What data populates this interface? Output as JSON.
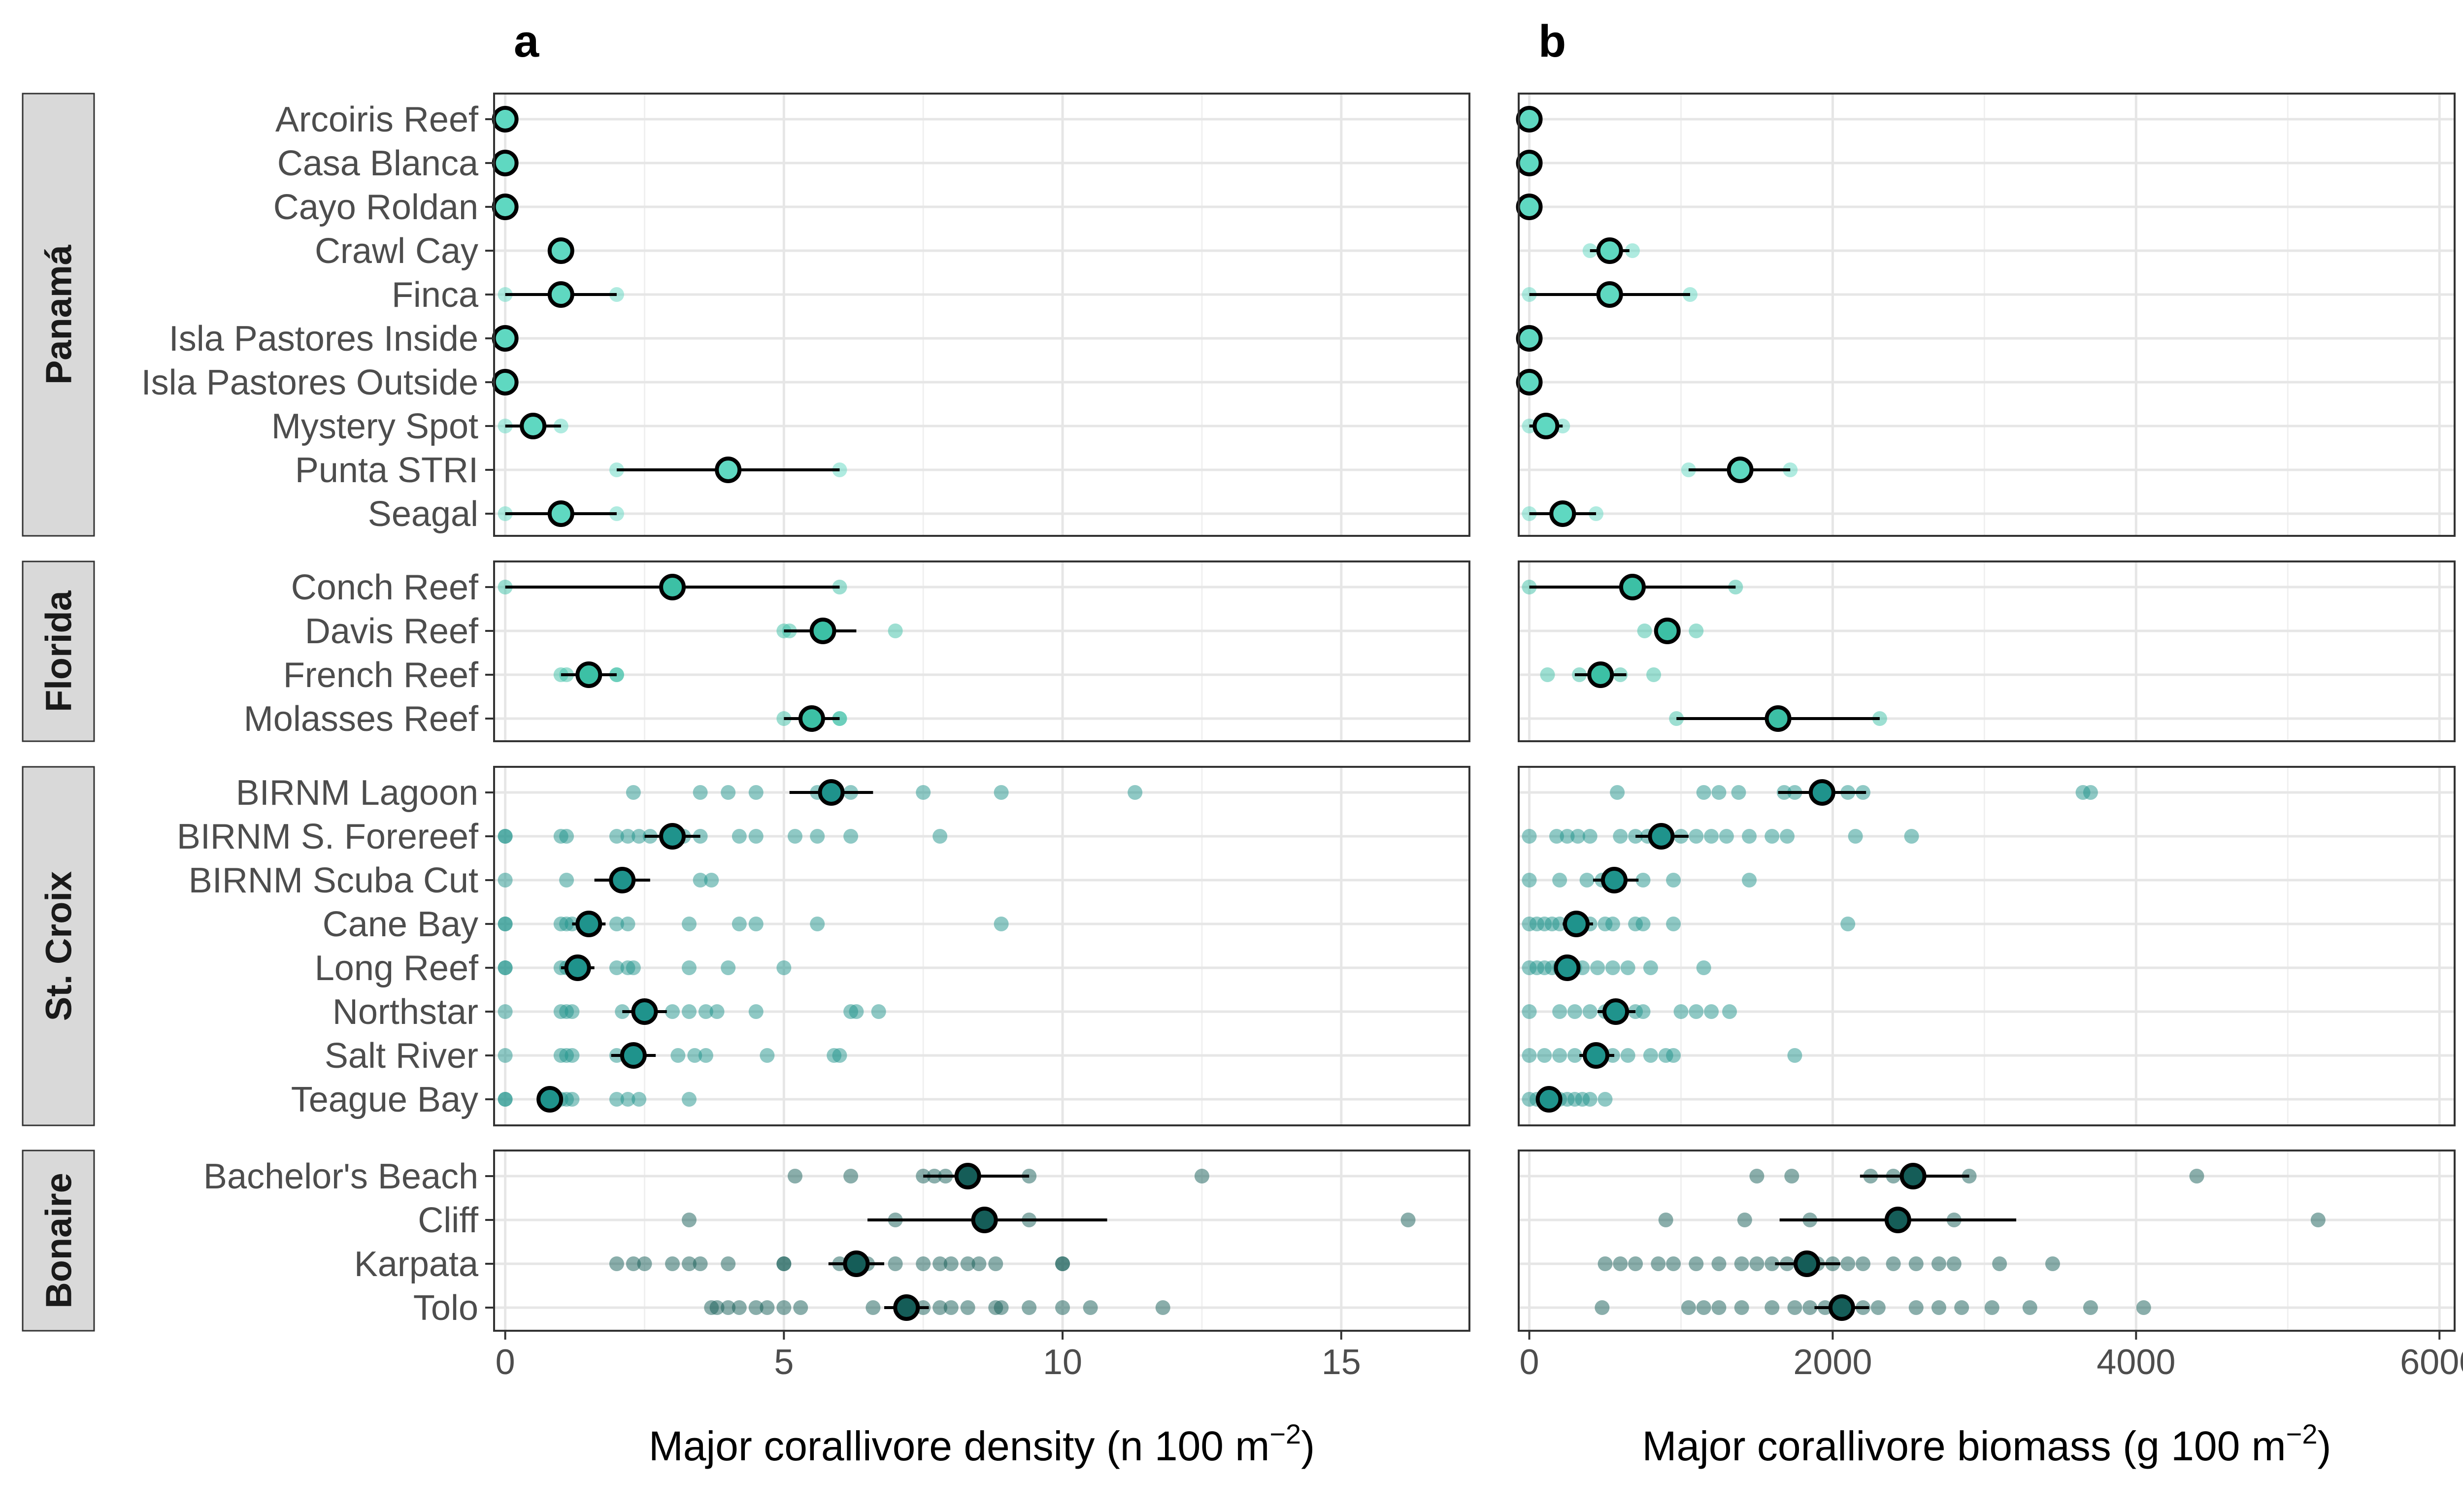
{
  "colors": {
    "Panamá": "#5fd8c1",
    "Florida": "#3cc0a5",
    "St. Croix": "#1f938c",
    "Bonaire": "#155d58"
  },
  "chart_data": [
    {
      "type": "scatter",
      "panel_tag": "a",
      "title": "",
      "xlabel": "Major corallivore density (n 100 m",
      "xlabel_sup": "−2",
      "xlabel_tail": ")",
      "xlim": [
        -0.2,
        17.3
      ],
      "xticks": [
        0,
        5,
        10,
        15
      ],
      "xtick_labels": [
        "0",
        "5",
        "10",
        "15"
      ],
      "grid": true,
      "groups": [
        {
          "region": "Panamá",
          "sites": [
            {
              "name": "Arcoiris Reef",
              "mean": 0,
              "lo": 0,
              "hi": 0,
              "points": [
                0,
                0
              ]
            },
            {
              "name": "Casa Blanca",
              "mean": 0,
              "lo": 0,
              "hi": 0,
              "points": [
                0,
                0
              ]
            },
            {
              "name": "Cayo Roldan",
              "mean": 0,
              "lo": 0,
              "hi": 0,
              "points": [
                0,
                0
              ]
            },
            {
              "name": "Crawl Cay",
              "mean": 1,
              "lo": 1,
              "hi": 1,
              "points": [
                1,
                1
              ]
            },
            {
              "name": "Finca",
              "mean": 1,
              "lo": 0,
              "hi": 2,
              "points": [
                0,
                2
              ]
            },
            {
              "name": "Isla Pastores Inside",
              "mean": 0,
              "lo": 0,
              "hi": 0,
              "points": [
                0,
                0
              ]
            },
            {
              "name": "Isla Pastores Outside",
              "mean": 0,
              "lo": 0,
              "hi": 0,
              "points": [
                0,
                0
              ]
            },
            {
              "name": "Mystery Spot",
              "mean": 0.5,
              "lo": 0,
              "hi": 1,
              "points": [
                0,
                1
              ]
            },
            {
              "name": "Punta STRI",
              "mean": 4,
              "lo": 2,
              "hi": 6,
              "points": [
                2,
                6
              ]
            },
            {
              "name": "Seagal",
              "mean": 1,
              "lo": 0,
              "hi": 2,
              "points": [
                0,
                2
              ]
            }
          ]
        },
        {
          "region": "Florida",
          "sites": [
            {
              "name": "Conch Reef",
              "mean": 3,
              "lo": 0,
              "hi": 6,
              "points": [
                0,
                6
              ]
            },
            {
              "name": "Davis Reef",
              "mean": 5.7,
              "lo": 5,
              "hi": 6.3,
              "points": [
                5,
                5.1,
                7
              ]
            },
            {
              "name": "French Reef",
              "mean": 1.5,
              "lo": 1,
              "hi": 2,
              "points": [
                1,
                1.1,
                2,
                2
              ]
            },
            {
              "name": "Molasses Reef",
              "mean": 5.5,
              "lo": 5,
              "hi": 6,
              "points": [
                5,
                6,
                6
              ]
            }
          ]
        },
        {
          "region": "St. Croix",
          "sites": [
            {
              "name": "BIRNM Lagoon",
              "mean": 5.85,
              "lo": 5.1,
              "hi": 6.6,
              "points": [
                2.3,
                3.5,
                4,
                4.5,
                5.6,
                6.2,
                7.5,
                8.9,
                11.3
              ]
            },
            {
              "name": "BIRNM S. Forereef",
              "mean": 3,
              "lo": 2.5,
              "hi": 3.5,
              "points": [
                0,
                0,
                1,
                1.1,
                2,
                2.2,
                2.4,
                2.6,
                3.2,
                3.5,
                4.2,
                4.5,
                5.2,
                5.6,
                6.2,
                7.8
              ]
            },
            {
              "name": "BIRNM Scuba Cut",
              "mean": 2.1,
              "lo": 1.6,
              "hi": 2.6,
              "points": [
                0,
                1.1,
                2,
                2.2,
                3.5,
                3.7
              ]
            },
            {
              "name": "Cane Bay",
              "mean": 1.5,
              "lo": 1.2,
              "hi": 1.8,
              "points": [
                0,
                0,
                1,
                1.1,
                1.2,
                1.5,
                2,
                2.2,
                3.3,
                4.2,
                4.5,
                5.6,
                8.9
              ]
            },
            {
              "name": "Long Reef",
              "mean": 1.3,
              "lo": 1,
              "hi": 1.6,
              "points": [
                0,
                0,
                1,
                1.1,
                1.2,
                2,
                2.2,
                2.3,
                3.3,
                4,
                5
              ]
            },
            {
              "name": "Northstar",
              "mean": 2.5,
              "lo": 2.1,
              "hi": 2.9,
              "points": [
                0,
                1,
                1.1,
                1.2,
                2.1,
                2.4,
                3,
                3.3,
                3.6,
                3.8,
                4.5,
                6.2,
                6.3,
                6.7
              ]
            },
            {
              "name": "Salt River",
              "mean": 2.3,
              "lo": 1.9,
              "hi": 2.7,
              "points": [
                0,
                1,
                1.1,
                1.2,
                2,
                2.2,
                2.4,
                3.1,
                3.4,
                3.6,
                4.7,
                5.9,
                6
              ]
            },
            {
              "name": "Teague Bay",
              "mean": 0.8,
              "lo": 0.6,
              "hi": 1,
              "points": [
                0,
                0,
                0.7,
                1,
                1.1,
                1.2,
                2,
                2.2,
                2.4,
                3.3
              ]
            }
          ]
        },
        {
          "region": "Bonaire",
          "sites": [
            {
              "name": "Bachelor's Beach",
              "mean": 8.3,
              "lo": 7.5,
              "hi": 9.4,
              "points": [
                5.2,
                6.2,
                7.5,
                7.7,
                7.9,
                8.3,
                9.4,
                12.5
              ]
            },
            {
              "name": "Cliff",
              "mean": 8.6,
              "lo": 6.5,
              "hi": 10.8,
              "points": [
                3.3,
                7,
                8.6,
                9.4,
                16.2
              ]
            },
            {
              "name": "Karpata",
              "mean": 6.3,
              "lo": 5.8,
              "hi": 6.8,
              "points": [
                2,
                2.3,
                2.5,
                3,
                3.3,
                3.5,
                4,
                5,
                5,
                6,
                6.2,
                6.5,
                7,
                7.5,
                7.8,
                8,
                8.3,
                8.5,
                8.8,
                10,
                10
              ]
            },
            {
              "name": "Tolo",
              "mean": 7.2,
              "lo": 6.8,
              "hi": 7.6,
              "points": [
                3.7,
                3.8,
                4,
                4.2,
                4.5,
                4.7,
                5,
                5.3,
                6.6,
                7.2,
                7.5,
                7.8,
                8,
                8.3,
                8.8,
                8.9,
                9.4,
                10,
                10.5,
                11.8
              ]
            }
          ]
        }
      ]
    },
    {
      "type": "scatter",
      "panel_tag": "b",
      "title": "",
      "xlabel": "Major corallivore biomass (g 100 m",
      "xlabel_sup": "−2",
      "xlabel_tail": ")",
      "xlim": [
        -70,
        6100
      ],
      "xticks": [
        0,
        2000,
        4000,
        6000
      ],
      "xtick_labels": [
        "0",
        "2000",
        "4000",
        "6000"
      ],
      "grid": true,
      "groups": [
        {
          "region": "Panamá",
          "sites": [
            {
              "name": "Arcoiris Reef",
              "mean": 0,
              "lo": 0,
              "hi": 0,
              "points": [
                0,
                0
              ]
            },
            {
              "name": "Casa Blanca",
              "mean": 0,
              "lo": 0,
              "hi": 0,
              "points": [
                0,
                0
              ]
            },
            {
              "name": "Cayo Roldan",
              "mean": 0,
              "lo": 0,
              "hi": 0,
              "points": [
                0,
                0
              ]
            },
            {
              "name": "Crawl Cay",
              "mean": 530,
              "lo": 400,
              "hi": 660,
              "points": [
                400,
                680
              ]
            },
            {
              "name": "Finca",
              "mean": 530,
              "lo": 0,
              "hi": 1060,
              "points": [
                0,
                1060
              ]
            },
            {
              "name": "Isla Pastores Inside",
              "mean": 0,
              "lo": 0,
              "hi": 0,
              "points": [
                0,
                0
              ]
            },
            {
              "name": "Isla Pastores Outside",
              "mean": 0,
              "lo": 0,
              "hi": 0,
              "points": [
                0,
                0
              ]
            },
            {
              "name": "Mystery Spot",
              "mean": 110,
              "lo": 0,
              "hi": 220,
              "points": [
                0,
                220
              ]
            },
            {
              "name": "Punta STRI",
              "mean": 1390,
              "lo": 1050,
              "hi": 1720,
              "points": [
                1050,
                1720
              ]
            },
            {
              "name": "Seagal",
              "mean": 220,
              "lo": 0,
              "hi": 440,
              "points": [
                0,
                440
              ]
            }
          ]
        },
        {
          "region": "Florida",
          "sites": [
            {
              "name": "Conch Reef",
              "mean": 680,
              "lo": 0,
              "hi": 1360,
              "points": [
                0,
                1360
              ]
            },
            {
              "name": "Davis Reef",
              "mean": 910,
              "lo": 850,
              "hi": 980,
              "points": [
                760,
                900,
                1100
              ]
            },
            {
              "name": "French Reef",
              "mean": 470,
              "lo": 300,
              "hi": 640,
              "points": [
                120,
                330,
                500,
                600,
                820
              ]
            },
            {
              "name": "Molasses Reef",
              "mean": 1640,
              "lo": 970,
              "hi": 2310,
              "points": [
                970,
                2310
              ]
            }
          ]
        },
        {
          "region": "St. Croix",
          "sites": [
            {
              "name": "BIRNM Lagoon",
              "mean": 1930,
              "lo": 1640,
              "hi": 2220,
              "points": [
                580,
                1150,
                1250,
                1380,
                1680,
                1750,
                1950,
                2100,
                2200,
                3650,
                3700
              ]
            },
            {
              "name": "BIRNM S. Forereef",
              "mean": 870,
              "lo": 700,
              "hi": 1050,
              "points": [
                0,
                180,
                250,
                320,
                400,
                600,
                700,
                780,
                850,
                1000,
                1100,
                1200,
                1300,
                1450,
                1600,
                1700,
                2150,
                2520
              ]
            },
            {
              "name": "BIRNM Scuba Cut",
              "mean": 560,
              "lo": 420,
              "hi": 720,
              "points": [
                0,
                200,
                380,
                480,
                600,
                750,
                950,
                1450
              ]
            },
            {
              "name": "Cane Bay",
              "mean": 310,
              "lo": 220,
              "hi": 420,
              "points": [
                0,
                50,
                100,
                150,
                200,
                320,
                400,
                500,
                550,
                700,
                750,
                950,
                2100
              ]
            },
            {
              "name": "Long Reef",
              "mean": 250,
              "lo": 180,
              "hi": 330,
              "points": [
                0,
                50,
                100,
                150,
                200,
                300,
                350,
                450,
                550,
                650,
                800,
                1150
              ]
            },
            {
              "name": "Northstar",
              "mean": 570,
              "lo": 450,
              "hi": 700,
              "points": [
                0,
                200,
                300,
                400,
                500,
                600,
                700,
                750,
                1000,
                1100,
                1200,
                1320
              ]
            },
            {
              "name": "Salt River",
              "mean": 440,
              "lo": 330,
              "hi": 560,
              "points": [
                0,
                100,
                200,
                300,
                450,
                550,
                650,
                800,
                900,
                950,
                1750
              ]
            },
            {
              "name": "Teague Bay",
              "mean": 130,
              "lo": 80,
              "hi": 190,
              "points": [
                0,
                50,
                100,
                150,
                200,
                250,
                300,
                350,
                400,
                500
              ]
            }
          ]
        },
        {
          "region": "Bonaire",
          "sites": [
            {
              "name": "Bachelor's Beach",
              "mean": 2530,
              "lo": 2180,
              "hi": 2900,
              "points": [
                1500,
                1730,
                2250,
                2400,
                2530,
                2900,
                4400
              ]
            },
            {
              "name": "Cliff",
              "mean": 2430,
              "lo": 1650,
              "hi": 3210,
              "points": [
                900,
                1420,
                1850,
                2430,
                2800,
                5200
              ]
            },
            {
              "name": "Karpata",
              "mean": 1830,
              "lo": 1620,
              "hi": 2050,
              "points": [
                500,
                600,
                700,
                850,
                950,
                1100,
                1250,
                1400,
                1500,
                1600,
                1700,
                1800,
                1900,
                2000,
                2100,
                2200,
                2400,
                2550,
                2700,
                2800,
                3100,
                3450
              ]
            },
            {
              "name": "Tolo",
              "mean": 2060,
              "lo": 1880,
              "hi": 2240,
              "points": [
                480,
                1050,
                1150,
                1250,
                1400,
                1600,
                1750,
                1850,
                1950,
                2100,
                2200,
                2300,
                2550,
                2700,
                2850,
                3050,
                3300,
                3700,
                4050
              ]
            }
          ]
        }
      ]
    }
  ]
}
